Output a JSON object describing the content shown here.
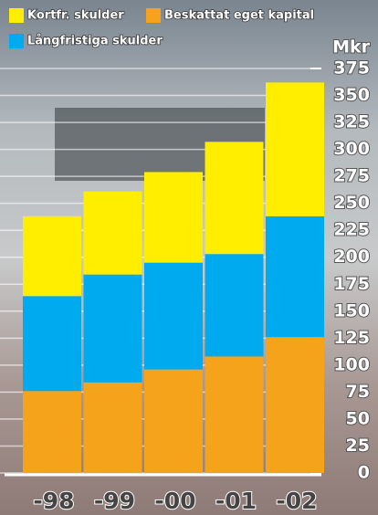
{
  "chart_data": {
    "type": "bar",
    "stacked": true,
    "categories": [
      "-98",
      "-99",
      "-00",
      "-01",
      "-02"
    ],
    "series": [
      {
        "name": "Kortfr. skulder",
        "color": "#ffee00",
        "values": [
          74,
          77,
          84,
          104,
          124
        ]
      },
      {
        "name": "Beskattat eget kapital",
        "color": "#f5a31a",
        "values": [
          76,
          84,
          96,
          108,
          126
        ]
      },
      {
        "name": "Långfristiga skulder",
        "color": "#00aaee",
        "values": [
          88,
          100,
          99,
          95,
          112
        ]
      }
    ],
    "ylabel": "Mkr",
    "ylim": [
      0,
      375
    ],
    "yticks": [
      0,
      25,
      50,
      75,
      100,
      125,
      150,
      175,
      200,
      225,
      250,
      275,
      300,
      325,
      350,
      375
    ],
    "grid": true
  }
}
